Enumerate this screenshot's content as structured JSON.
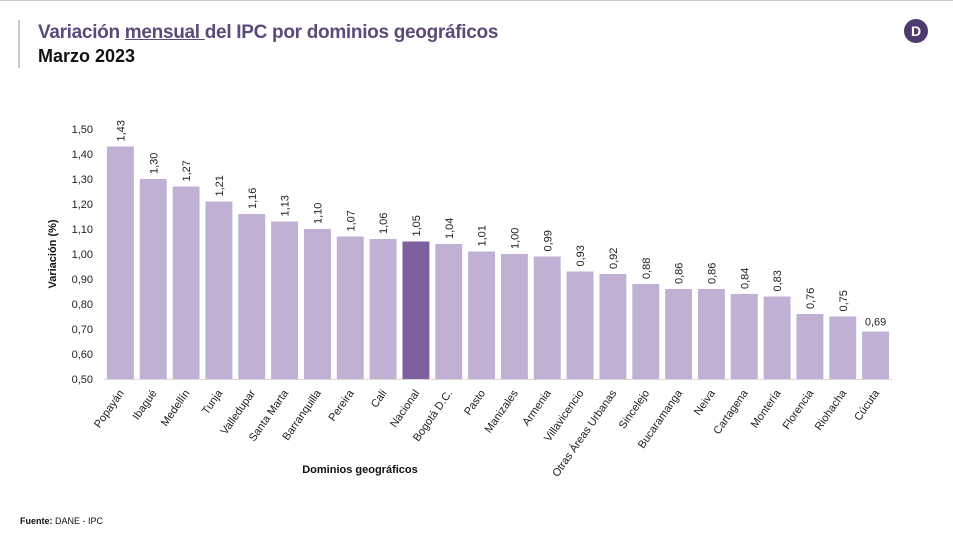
{
  "header": {
    "title_pre": "Variación ",
    "title_underlined": "mensual ",
    "title_post": "del IPC por dominios geográficos",
    "subtitle": "Marzo 2023",
    "logo_letter": "D"
  },
  "footer": {
    "label": "Fuente:",
    "text": " DANE - IPC"
  },
  "colors": {
    "bar": "#c0b1d4",
    "highlight": "#7e5fa0",
    "title": "#5b4a7a"
  },
  "chart_data": {
    "type": "bar",
    "xlabel": "Dominios geográficos",
    "ylabel": "Variación (%)",
    "ylim": [
      0.5,
      1.5
    ],
    "yticks": [
      "0,50",
      "0,60",
      "0,70",
      "0,80",
      "0,90",
      "1,00",
      "1,10",
      "1,20",
      "1,30",
      "1,40",
      "1,50"
    ],
    "grid": false,
    "highlight": "Nacional",
    "categories": [
      "Popayán",
      "Ibagué",
      "Medellín",
      "Tunja",
      "Valledupar",
      "Santa Marta",
      "Barranquilla",
      "Pereira",
      "Cali",
      "Nacional",
      "Bogotá D.C.",
      "Pasto",
      "Manizales",
      "Armenia",
      "Villavicencio",
      "Otras Áreas Urbanas",
      "Sincelejo",
      "Bucaramanga",
      "Neiva",
      "Cartagena",
      "Montería",
      "Florencia",
      "Riohacha",
      "Cúcuta"
    ],
    "values": [
      1.43,
      1.3,
      1.27,
      1.21,
      1.16,
      1.13,
      1.1,
      1.07,
      1.06,
      1.05,
      1.04,
      1.01,
      1.0,
      0.99,
      0.93,
      0.92,
      0.88,
      0.86,
      0.86,
      0.84,
      0.83,
      0.76,
      0.75,
      0.69
    ],
    "labels": [
      "1,43",
      "1,30",
      "1,27",
      "1,21",
      "1,16",
      "1,13",
      "1,10",
      "1,07",
      "1,06",
      "1,05",
      "1,04",
      "1,01",
      "1,00",
      "0,99",
      "0,93",
      "0,92",
      "0,88",
      "0,86",
      "0,86",
      "0,84",
      "0,83",
      "0,76",
      "0,75",
      "0,69"
    ]
  }
}
